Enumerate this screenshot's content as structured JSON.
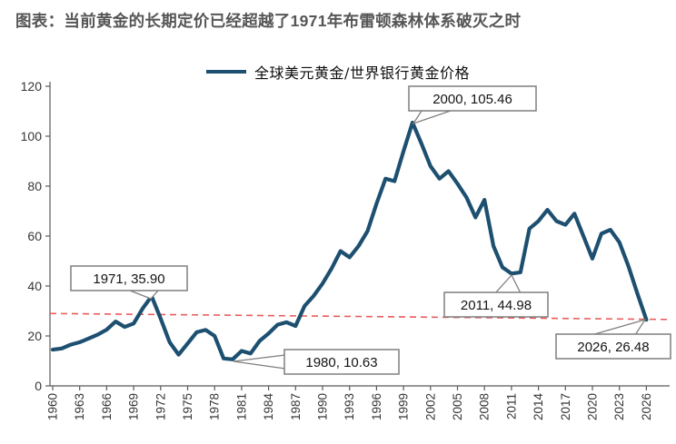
{
  "title": "图表：当前黄金的长期定价已经超越了1971年布雷顿森林体系破灭之时",
  "legend": {
    "label": "全球美元黄金/世界银行黄金价格",
    "line_color": "#1c4f70"
  },
  "chart_data": {
    "type": "line",
    "title": "图表：当前黄金的长期定价已经超越了1971年布雷顿森林体系破灭之时",
    "xlabel": "",
    "ylabel": "",
    "xlim": [
      1960,
      2026
    ],
    "ylim": [
      0,
      120
    ],
    "grid": false,
    "legend_position": "top-center",
    "y_ticks": [
      0,
      20,
      40,
      60,
      80,
      100,
      120
    ],
    "x_tick_labels": [
      "1960",
      "1963",
      "1966",
      "1969",
      "1972",
      "1975",
      "1978",
      "1981",
      "1984",
      "1987",
      "1990",
      "1993",
      "1996",
      "1999",
      "2002",
      "2005",
      "2008",
      "2011",
      "2014",
      "2017",
      "2020",
      "2023",
      "2026"
    ],
    "series": [
      {
        "name": "全球美元黄金/世界银行黄金价格",
        "color": "#1c4f70",
        "x_start": 1960,
        "x_step": 1,
        "values": [
          14.5,
          15.0,
          16.5,
          17.5,
          19.0,
          20.5,
          22.5,
          25.8,
          23.6,
          25.0,
          31.0,
          35.9,
          27.0,
          17.5,
          12.5,
          17.0,
          21.5,
          22.4,
          20.0,
          11.0,
          10.63,
          14.0,
          13.0,
          18.0,
          21.0,
          24.5,
          25.5,
          24.0,
          32.0,
          36.0,
          41.0,
          47.0,
          54.0,
          51.5,
          56.0,
          62.0,
          73.0,
          83.0,
          82.0,
          94.0,
          105.46,
          97.0,
          88.0,
          83.0,
          86.0,
          81.0,
          75.5,
          67.5,
          74.5,
          56.0,
          47.5,
          44.98,
          45.5,
          63.0,
          66.0,
          70.5,
          66.0,
          64.5,
          69.0,
          60.0,
          51.0,
          61.0,
          62.5,
          57.5,
          48.0,
          37.0,
          26.48
        ]
      }
    ],
    "trendline": {
      "style": "dashed",
      "color": "#e95c5c",
      "start_value": 29.0,
      "end_value": 26.6
    },
    "annotations": [
      {
        "label": "1971, 35.90",
        "year": 1971,
        "value": 35.9
      },
      {
        "label": "1980, 10.63",
        "year": 1980,
        "value": 10.63
      },
      {
        "label": "2000, 105.46",
        "year": 2000,
        "value": 105.46
      },
      {
        "label": "2011, 44.98",
        "year": 2011,
        "value": 44.98
      },
      {
        "label": "2026, 26.48",
        "year": 2026,
        "value": 26.48
      }
    ]
  },
  "colors": {
    "line": "#1c4f70",
    "trend": "#e95c5c",
    "axis": "#595959",
    "callout_border": "#7f7f7f",
    "title_text": "#565656"
  }
}
